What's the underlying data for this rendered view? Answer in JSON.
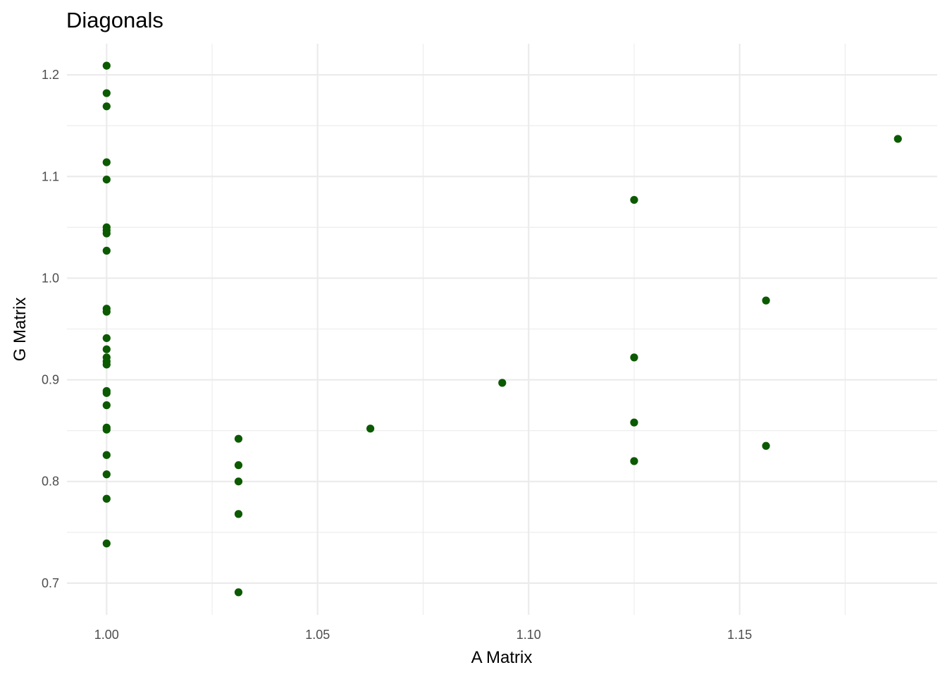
{
  "chart_data": {
    "type": "scatter",
    "title": "Diagonals",
    "xlabel": "A Matrix",
    "ylabel": "G Matrix",
    "xlim": [
      0.9906,
      1.1968
    ],
    "ylim": [
      0.6687,
      1.2306
    ],
    "x_ticks": [
      1.0,
      1.05,
      1.1,
      1.15
    ],
    "x_tick_labels": [
      "1.00",
      "1.05",
      "1.10",
      "1.15"
    ],
    "x_minor_ticks": [
      1.025,
      1.075,
      1.125,
      1.175
    ],
    "y_ticks": [
      0.7,
      0.8,
      0.9,
      1.0,
      1.1,
      1.2
    ],
    "y_tick_labels": [
      "0.7",
      "0.8",
      "0.9",
      "1.0",
      "1.1",
      "1.2"
    ],
    "y_minor_ticks": [
      0.75,
      0.85,
      0.95,
      1.05,
      1.15
    ],
    "grid": true,
    "point_color": "#0b5a00",
    "grid_color": "#ebebeb",
    "points": [
      {
        "x": 1.0,
        "y": 1.209
      },
      {
        "x": 1.0,
        "y": 1.182
      },
      {
        "x": 1.0,
        "y": 1.169
      },
      {
        "x": 1.0,
        "y": 1.114
      },
      {
        "x": 1.0,
        "y": 1.097
      },
      {
        "x": 1.0,
        "y": 1.05
      },
      {
        "x": 1.0,
        "y": 1.047
      },
      {
        "x": 1.0,
        "y": 1.044
      },
      {
        "x": 1.0,
        "y": 1.027
      },
      {
        "x": 1.0,
        "y": 0.97
      },
      {
        "x": 1.0,
        "y": 0.967
      },
      {
        "x": 1.0,
        "y": 0.941
      },
      {
        "x": 1.0,
        "y": 0.93
      },
      {
        "x": 1.0,
        "y": 0.922
      },
      {
        "x": 1.0,
        "y": 0.918
      },
      {
        "x": 1.0,
        "y": 0.915
      },
      {
        "x": 1.0,
        "y": 0.889
      },
      {
        "x": 1.0,
        "y": 0.887
      },
      {
        "x": 1.0,
        "y": 0.875
      },
      {
        "x": 1.0,
        "y": 0.853
      },
      {
        "x": 1.0,
        "y": 0.851
      },
      {
        "x": 1.0,
        "y": 0.826
      },
      {
        "x": 1.0,
        "y": 0.807
      },
      {
        "x": 1.0,
        "y": 0.783
      },
      {
        "x": 1.0,
        "y": 0.739
      },
      {
        "x": 1.03125,
        "y": 0.842
      },
      {
        "x": 1.03125,
        "y": 0.816
      },
      {
        "x": 1.03125,
        "y": 0.8
      },
      {
        "x": 1.03125,
        "y": 0.768
      },
      {
        "x": 1.03125,
        "y": 0.691
      },
      {
        "x": 1.0625,
        "y": 0.852
      },
      {
        "x": 1.09375,
        "y": 0.897
      },
      {
        "x": 1.125,
        "y": 1.077
      },
      {
        "x": 1.125,
        "y": 0.922
      },
      {
        "x": 1.125,
        "y": 0.858
      },
      {
        "x": 1.125,
        "y": 0.82
      },
      {
        "x": 1.15625,
        "y": 0.978
      },
      {
        "x": 1.15625,
        "y": 0.835
      },
      {
        "x": 1.1875,
        "y": 1.137
      }
    ]
  }
}
